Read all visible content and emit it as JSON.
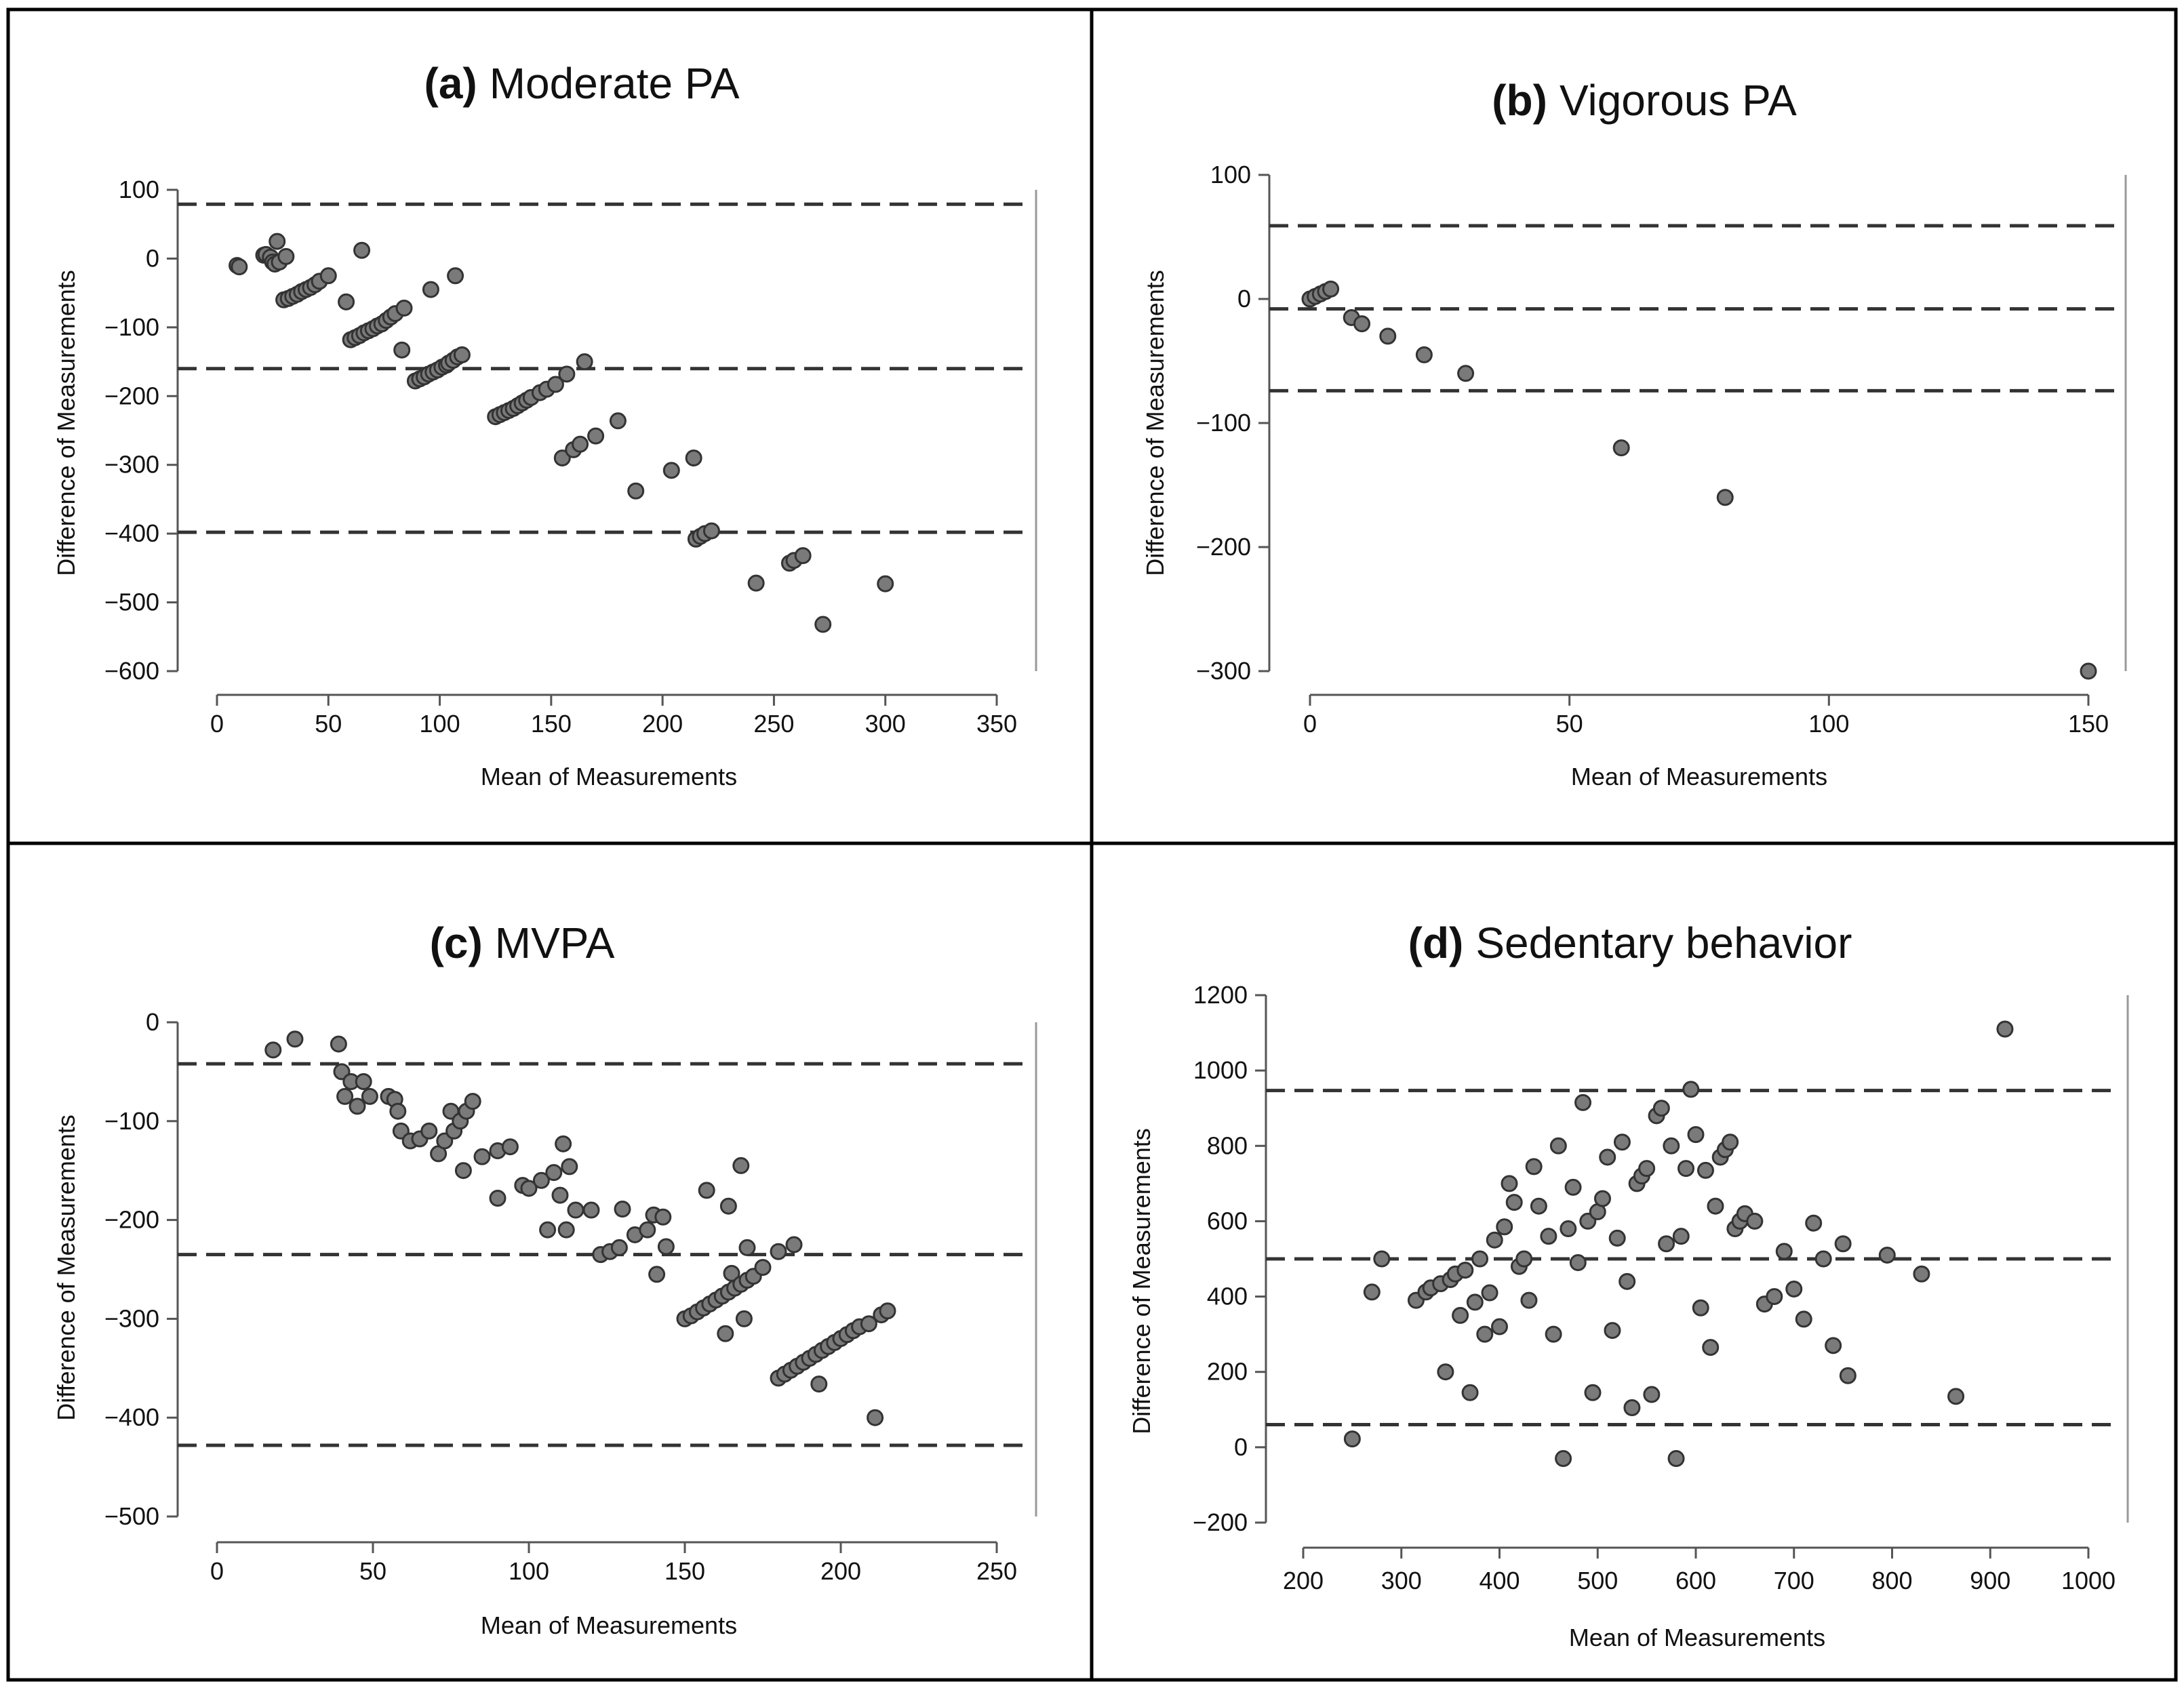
{
  "colors": {
    "point_fill": "#7a7a7a",
    "point_stroke": "#333333",
    "axis": "#555555",
    "dashed_line": "#333333",
    "panel_border": "#000000",
    "text": "#111111"
  },
  "chart_data": [
    {
      "type": "scatter",
      "title_prefix": "(a)",
      "title_text": "Moderate PA",
      "xlabel": "Mean of Measurements",
      "ylabel": "Difference of Measurements",
      "xlim": [
        0,
        350
      ],
      "ylim": [
        -600,
        100
      ],
      "xticks": [
        0,
        50,
        100,
        150,
        200,
        250,
        300,
        350
      ],
      "yticks": [
        100,
        0,
        -100,
        -200,
        -300,
        -400,
        -500,
        -600
      ],
      "reference_lines": [
        79,
        -160,
        -398
      ],
      "points": [
        [
          9,
          -10
        ],
        [
          10,
          -12
        ],
        [
          21,
          5
        ],
        [
          22,
          6
        ],
        [
          24,
          2
        ],
        [
          25,
          -5
        ],
        [
          26,
          -8
        ],
        [
          27,
          25
        ],
        [
          28,
          -5
        ],
        [
          30,
          -60
        ],
        [
          31,
          3
        ],
        [
          32,
          -58
        ],
        [
          34,
          -55
        ],
        [
          36,
          -52
        ],
        [
          38,
          -48
        ],
        [
          40,
          -45
        ],
        [
          42,
          -42
        ],
        [
          44,
          -38
        ],
        [
          46,
          -33
        ],
        [
          50,
          -25
        ],
        [
          58,
          -63
        ],
        [
          60,
          -118
        ],
        [
          62,
          -115
        ],
        [
          64,
          -112
        ],
        [
          65,
          12
        ],
        [
          66,
          -108
        ],
        [
          68,
          -105
        ],
        [
          70,
          -102
        ],
        [
          72,
          -98
        ],
        [
          74,
          -95
        ],
        [
          76,
          -90
        ],
        [
          78,
          -85
        ],
        [
          80,
          -80
        ],
        [
          83,
          -133
        ],
        [
          84,
          -72
        ],
        [
          89,
          -178
        ],
        [
          91,
          -175
        ],
        [
          93,
          -172
        ],
        [
          95,
          -168
        ],
        [
          96,
          -45
        ],
        [
          97,
          -165
        ],
        [
          99,
          -162
        ],
        [
          101,
          -158
        ],
        [
          103,
          -155
        ],
        [
          104,
          -152
        ],
        [
          106,
          -148
        ],
        [
          107,
          -25
        ],
        [
          108,
          -143
        ],
        [
          110,
          -140
        ],
        [
          125,
          -230
        ],
        [
          127,
          -227
        ],
        [
          129,
          -224
        ],
        [
          131,
          -221
        ],
        [
          133,
          -218
        ],
        [
          135,
          -214
        ],
        [
          137,
          -210
        ],
        [
          139,
          -206
        ],
        [
          141,
          -202
        ],
        [
          145,
          -195
        ],
        [
          148,
          -190
        ],
        [
          152,
          -183
        ],
        [
          155,
          -290
        ],
        [
          157,
          -168
        ],
        [
          160,
          -278
        ],
        [
          163,
          -270
        ],
        [
          165,
          -150
        ],
        [
          170,
          -258
        ],
        [
          180,
          -236
        ],
        [
          188,
          -338
        ],
        [
          204,
          -308
        ],
        [
          214,
          -290
        ],
        [
          215,
          -408
        ],
        [
          217,
          -404
        ],
        [
          219,
          -400
        ],
        [
          222,
          -396
        ],
        [
          242,
          -472
        ],
        [
          257,
          -443
        ],
        [
          259,
          -439
        ],
        [
          263,
          -432
        ],
        [
          272,
          -532
        ],
        [
          300,
          -473
        ]
      ]
    },
    {
      "type": "scatter",
      "title_prefix": "(b)",
      "title_text": "Vigorous PA",
      "xlabel": "Mean of Measurements",
      "ylabel": "Difference of Measurements",
      "xlim": [
        0,
        150
      ],
      "ylim": [
        -300,
        100
      ],
      "xticks": [
        0,
        50,
        100,
        150
      ],
      "yticks": [
        100,
        0,
        -100,
        -200,
        -300
      ],
      "reference_lines": [
        59,
        -8,
        -74
      ],
      "points": [
        [
          0,
          0
        ],
        [
          1,
          2
        ],
        [
          2,
          4
        ],
        [
          3,
          6
        ],
        [
          4,
          8
        ],
        [
          8,
          -15
        ],
        [
          10,
          -20
        ],
        [
          15,
          -30
        ],
        [
          22,
          -45
        ],
        [
          30,
          -60
        ],
        [
          60,
          -120
        ],
        [
          80,
          -160
        ],
        [
          150,
          -300
        ]
      ]
    },
    {
      "type": "scatter",
      "title_prefix": "(c)",
      "title_text": "MVPA",
      "xlabel": "Mean of Measurements",
      "ylabel": "Difference of Measurements",
      "xlim": [
        0,
        250
      ],
      "ylim": [
        -500,
        0
      ],
      "xticks": [
        0,
        50,
        100,
        150,
        200,
        250
      ],
      "yticks": [
        0,
        -100,
        -200,
        -300,
        -400,
        -500
      ],
      "reference_lines": [
        -42,
        -235,
        -428
      ],
      "points": [
        [
          18,
          -28
        ],
        [
          25,
          -17
        ],
        [
          39,
          -22
        ],
        [
          40,
          -50
        ],
        [
          41,
          -75
        ],
        [
          43,
          -60
        ],
        [
          45,
          -85
        ],
        [
          47,
          -60
        ],
        [
          49,
          -75
        ],
        [
          55,
          -75
        ],
        [
          57,
          -78
        ],
        [
          58,
          -90
        ],
        [
          59,
          -110
        ],
        [
          62,
          -120
        ],
        [
          65,
          -118
        ],
        [
          68,
          -110
        ],
        [
          71,
          -133
        ],
        [
          73,
          -120
        ],
        [
          75,
          -90
        ],
        [
          76,
          -110
        ],
        [
          78,
          -100
        ],
        [
          79,
          -150
        ],
        [
          80,
          -90
        ],
        [
          82,
          -80
        ],
        [
          85,
          -136
        ],
        [
          90,
          -130
        ],
        [
          90,
          -178
        ],
        [
          94,
          -126
        ],
        [
          98,
          -165
        ],
        [
          100,
          -168
        ],
        [
          104,
          -160
        ],
        [
          106,
          -210
        ],
        [
          108,
          -152
        ],
        [
          110,
          -175
        ],
        [
          111,
          -123
        ],
        [
          112,
          -210
        ],
        [
          113,
          -146
        ],
        [
          115,
          -190
        ],
        [
          120,
          -190
        ],
        [
          123,
          -235
        ],
        [
          126,
          -232
        ],
        [
          129,
          -228
        ],
        [
          130,
          -189
        ],
        [
          134,
          -215
        ],
        [
          138,
          -210
        ],
        [
          140,
          -195
        ],
        [
          141,
          -255
        ],
        [
          143,
          -197
        ],
        [
          144,
          -227
        ],
        [
          150,
          -300
        ],
        [
          152,
          -297
        ],
        [
          154,
          -293
        ],
        [
          156,
          -289
        ],
        [
          157,
          -170
        ],
        [
          158,
          -285
        ],
        [
          160,
          -281
        ],
        [
          162,
          -277
        ],
        [
          163,
          -315
        ],
        [
          164,
          -273
        ],
        [
          164,
          -186
        ],
        [
          165,
          -254
        ],
        [
          166,
          -269
        ],
        [
          168,
          -265
        ],
        [
          168,
          -145
        ],
        [
          169,
          -300
        ],
        [
          170,
          -261
        ],
        [
          170,
          -228
        ],
        [
          172,
          -257
        ],
        [
          175,
          -248
        ],
        [
          180,
          -360
        ],
        [
          182,
          -356
        ],
        [
          184,
          -352
        ],
        [
          186,
          -348
        ],
        [
          188,
          -344
        ],
        [
          190,
          -340
        ],
        [
          192,
          -336
        ],
        [
          194,
          -332
        ],
        [
          196,
          -328
        ],
        [
          198,
          -324
        ],
        [
          200,
          -320
        ],
        [
          202,
          -316
        ],
        [
          204,
          -312
        ],
        [
          206,
          -308
        ],
        [
          209,
          -305
        ],
        [
          211,
          -400
        ],
        [
          213,
          -296
        ],
        [
          215,
          -292
        ],
        [
          193,
          -366
        ],
        [
          180,
          -232
        ],
        [
          185,
          -225
        ]
      ]
    },
    {
      "type": "scatter",
      "title_prefix": "(d)",
      "title_text": "Sedentary behavior",
      "xlabel": "Mean of Measurements",
      "ylabel": "Difference of Measurements",
      "xlim": [
        200,
        1000
      ],
      "ylim": [
        -200,
        1200
      ],
      "xticks": [
        200,
        300,
        400,
        500,
        600,
        700,
        800,
        900,
        1000
      ],
      "yticks": [
        1200,
        1000,
        800,
        600,
        400,
        200,
        0,
        -200
      ],
      "reference_lines": [
        947,
        500,
        60
      ],
      "points": [
        [
          250,
          22
        ],
        [
          270,
          412
        ],
        [
          280,
          500
        ],
        [
          315,
          390
        ],
        [
          325,
          412
        ],
        [
          330,
          423
        ],
        [
          340,
          434
        ],
        [
          345,
          200
        ],
        [
          350,
          445
        ],
        [
          355,
          460
        ],
        [
          360,
          350
        ],
        [
          365,
          470
        ],
        [
          370,
          145
        ],
        [
          375,
          385
        ],
        [
          380,
          500
        ],
        [
          385,
          300
        ],
        [
          390,
          410
        ],
        [
          395,
          550
        ],
        [
          400,
          320
        ],
        [
          405,
          585
        ],
        [
          410,
          700
        ],
        [
          415,
          650
        ],
        [
          420,
          480
        ],
        [
          425,
          500
        ],
        [
          430,
          390
        ],
        [
          435,
          745
        ],
        [
          440,
          640
        ],
        [
          450,
          560
        ],
        [
          455,
          300
        ],
        [
          460,
          800
        ],
        [
          465,
          -30
        ],
        [
          470,
          580
        ],
        [
          475,
          690
        ],
        [
          480,
          490
        ],
        [
          485,
          915
        ],
        [
          490,
          600
        ],
        [
          495,
          145
        ],
        [
          500,
          625
        ],
        [
          505,
          660
        ],
        [
          510,
          770
        ],
        [
          515,
          310
        ],
        [
          520,
          555
        ],
        [
          525,
          810
        ],
        [
          530,
          440
        ],
        [
          535,
          105
        ],
        [
          540,
          700
        ],
        [
          545,
          720
        ],
        [
          550,
          740
        ],
        [
          555,
          140
        ],
        [
          560,
          880
        ],
        [
          565,
          900
        ],
        [
          570,
          540
        ],
        [
          575,
          800
        ],
        [
          580,
          -30
        ],
        [
          585,
          560
        ],
        [
          590,
          740
        ],
        [
          595,
          950
        ],
        [
          600,
          830
        ],
        [
          605,
          370
        ],
        [
          610,
          735
        ],
        [
          615,
          265
        ],
        [
          620,
          640
        ],
        [
          625,
          770
        ],
        [
          630,
          790
        ],
        [
          635,
          810
        ],
        [
          640,
          580
        ],
        [
          645,
          600
        ],
        [
          650,
          620
        ],
        [
          660,
          600
        ],
        [
          670,
          380
        ],
        [
          680,
          400
        ],
        [
          690,
          520
        ],
        [
          700,
          420
        ],
        [
          710,
          340
        ],
        [
          720,
          595
        ],
        [
          730,
          500
        ],
        [
          740,
          270
        ],
        [
          750,
          540
        ],
        [
          755,
          190
        ],
        [
          795,
          510
        ],
        [
          830,
          460
        ],
        [
          865,
          135
        ],
        [
          915,
          1110
        ]
      ]
    }
  ]
}
